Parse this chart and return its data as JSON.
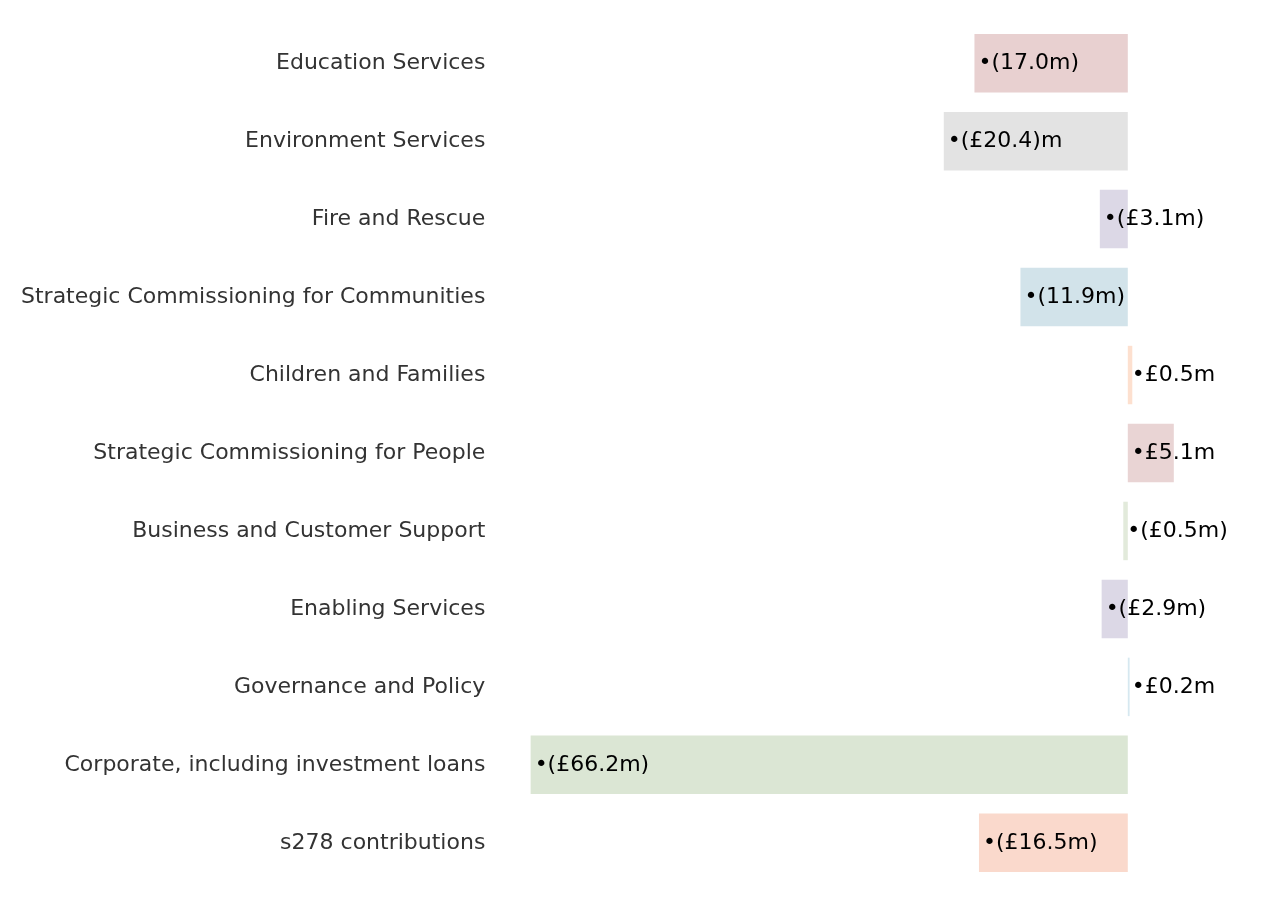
{
  "chart_data": {
    "type": "bar",
    "orientation": "horizontal",
    "categories": [
      "Education Services",
      "Environment Services",
      "Fire and Rescue",
      "Strategic Commissioning for Communities",
      "Children and Families",
      "Strategic Commissioning for People",
      "Business and Customer Support",
      "Enabling Services",
      "Governance and Policy",
      "Corporate, including investment loans",
      "s278 contributions"
    ],
    "values": [
      -17.0,
      -20.4,
      -3.1,
      -11.9,
      0.5,
      5.1,
      -0.5,
      -2.9,
      0.2,
      -66.2,
      -16.5
    ],
    "colors": [
      "#e8d0d0",
      "#e3e3e3",
      "#dcd8e6",
      "#d2e3ea",
      "#fde0cf",
      "#e9d4d4",
      "#e2eadb",
      "#dcd8e6",
      "#d6e8f0",
      "#dbe6d4",
      "#fad9cc"
    ],
    "value_labels": [
      "•(17.0m)",
      "•(£20.4)m",
      "•(£3.1m)",
      "•(11.9m)",
      "•£0.5m",
      "•£5.1m",
      "•(£0.5m)",
      "•(£2.9m)",
      "•£0.2m",
      "•(£66.2m)",
      "•(£16.5m)"
    ],
    "tick_labels": "y",
    "grid": false,
    "legend": false
  }
}
